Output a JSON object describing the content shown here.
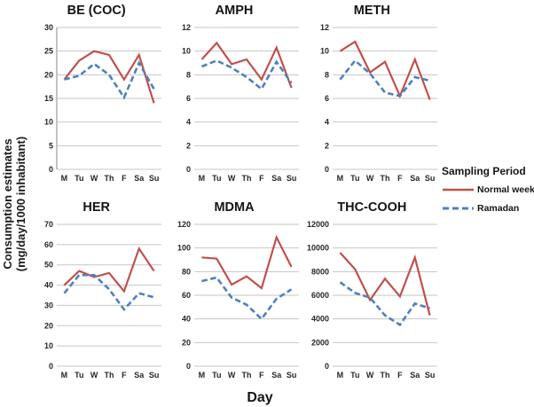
{
  "figure": {
    "y_axis_label_line1": "Consumption estimates",
    "y_axis_label_line2": "(mg/day/1000 inhabitant)",
    "x_axis_label": "Day"
  },
  "legend": {
    "title": "Sampling Period",
    "position": "right",
    "entries": [
      {
        "label": "Normal week",
        "color": "#C0504D",
        "style": "solid"
      },
      {
        "label": "Ramadan",
        "color": "#4F81BD",
        "style": "dashed"
      }
    ]
  },
  "colors": {
    "normal_week": "#C0504D",
    "ramadan": "#4F81BD",
    "gridline": "#C6C6C6",
    "axis_line": "#9E9E9E",
    "text": "#262626"
  },
  "chart_data": [
    {
      "type": "line",
      "title": "BE (COC)",
      "categories": [
        "M",
        "Tu",
        "W",
        "Th",
        "F",
        "Sa",
        "Su"
      ],
      "ylim": [
        0,
        30
      ],
      "ytick_step": 5,
      "grid": true,
      "y_axis_line": true,
      "series": [
        {
          "name": "Normal week",
          "values": [
            19,
            23,
            25,
            24.2,
            19,
            24.2,
            14
          ]
        },
        {
          "name": "Ramadan",
          "values": [
            19,
            19.8,
            22.3,
            20,
            15.2,
            22.5,
            17
          ]
        }
      ]
    },
    {
      "type": "line",
      "title": "AMPH",
      "categories": [
        "M",
        "Tu",
        "W",
        "Th",
        "F",
        "Sa",
        "Su"
      ],
      "ylim": [
        0,
        12
      ],
      "ytick_step": 2,
      "grid": true,
      "y_axis_line": false,
      "series": [
        {
          "name": "Normal week",
          "values": [
            9.3,
            10.7,
            8.9,
            9.3,
            7.6,
            10.3,
            6.9
          ]
        },
        {
          "name": "Ramadan",
          "values": [
            8.7,
            9.2,
            8.6,
            7.8,
            6.8,
            9.1,
            7.3
          ]
        }
      ]
    },
    {
      "type": "line",
      "title": "METH",
      "categories": [
        "M",
        "Tu",
        "W",
        "Th",
        "F",
        "Sa",
        "Su"
      ],
      "ylim": [
        0,
        12
      ],
      "ytick_step": 2,
      "grid": true,
      "y_axis_line": false,
      "series": [
        {
          "name": "Normal week",
          "values": [
            10,
            10.8,
            8.2,
            9.1,
            6.2,
            9.3,
            5.9
          ]
        },
        {
          "name": "Ramadan",
          "values": [
            7.6,
            9.2,
            8.1,
            6.5,
            6.2,
            7.8,
            7.5
          ]
        }
      ]
    },
    {
      "type": "line",
      "title": "HER",
      "categories": [
        "M",
        "Tu",
        "W",
        "Th",
        "F",
        "Sa",
        "Su"
      ],
      "ylim": [
        0,
        70
      ],
      "ytick_step": 10,
      "grid": true,
      "y_axis_line": false,
      "series": [
        {
          "name": "Normal week",
          "values": [
            40,
            47,
            44,
            46,
            37,
            58,
            47
          ]
        },
        {
          "name": "Ramadan",
          "values": [
            36,
            45,
            45,
            38,
            28,
            36,
            34
          ]
        }
      ]
    },
    {
      "type": "line",
      "title": "MDMA",
      "categories": [
        "M",
        "Tu",
        "W",
        "Th",
        "F",
        "Sa",
        "Su"
      ],
      "ylim": [
        0,
        120
      ],
      "ytick_step": 20,
      "grid": true,
      "y_axis_line": false,
      "series": [
        {
          "name": "Normal week",
          "values": [
            92,
            91,
            69,
            76,
            66,
            109,
            84
          ]
        },
        {
          "name": "Ramadan",
          "values": [
            72,
            75,
            58,
            52,
            40,
            57,
            65
          ]
        }
      ]
    },
    {
      "type": "line",
      "title": "THC-COOH",
      "categories": [
        "M",
        "Tu",
        "W",
        "Th",
        "F",
        "Sa",
        "Su"
      ],
      "ylim": [
        0,
        12000
      ],
      "ytick_step": 2000,
      "grid": true,
      "y_axis_line": false,
      "series": [
        {
          "name": "Normal week",
          "values": [
            9600,
            8200,
            5600,
            7400,
            5900,
            9200,
            4300
          ]
        },
        {
          "name": "Ramadan",
          "values": [
            7100,
            6200,
            5800,
            4300,
            3500,
            5300,
            4900
          ]
        }
      ]
    }
  ]
}
